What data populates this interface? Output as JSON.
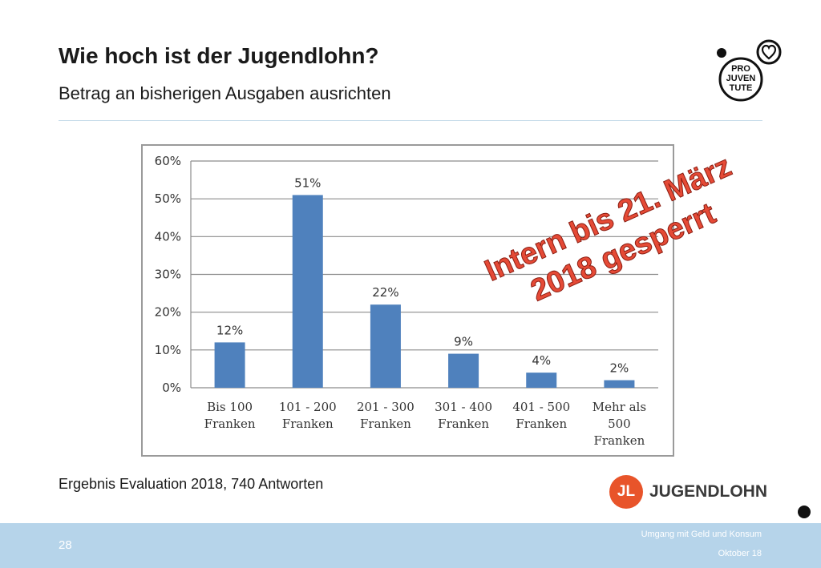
{
  "slide": {
    "title": "Wie hoch ist der Jugendlohn?",
    "subtitle": "Betrag an bisherigen Ausgaben ausrichten",
    "caption": "Ergebnis Evaluation 2018, 740 Antworten",
    "watermark_line1": "Intern bis 21. März",
    "watermark_line2": "2018 gesperrt"
  },
  "logos": {
    "projuventute_text": [
      "PRO",
      "JUVEN",
      "TUTE"
    ],
    "jugendlohn_initials": "JL",
    "jugendlohn_name": "JUGENDLOHN"
  },
  "footer": {
    "page_number": "28",
    "topic": "Umgang mit Geld und Konsum",
    "date": "Oktober 18"
  },
  "colors": {
    "bar": "#4f81bd",
    "footer": "#b6d4ea",
    "accent_orange": "#e8542a",
    "watermark": "#e54a36"
  },
  "chart_data": {
    "type": "bar",
    "categories": [
      [
        "Bis 100",
        "Franken"
      ],
      [
        "101 - 200",
        "Franken"
      ],
      [
        "201 - 300",
        "Franken"
      ],
      [
        "301 - 400",
        "Franken"
      ],
      [
        "401 - 500",
        "Franken"
      ],
      [
        "Mehr als",
        "500",
        "Franken"
      ]
    ],
    "values": [
      12,
      51,
      22,
      9,
      4,
      2
    ],
    "data_labels": [
      "12%",
      "51%",
      "22%",
      "9%",
      "4%",
      "2%"
    ],
    "y_ticks": [
      "0%",
      "10%",
      "20%",
      "30%",
      "40%",
      "50%",
      "60%"
    ],
    "ylim": [
      0,
      60
    ],
    "grid": true,
    "legend": "none"
  }
}
